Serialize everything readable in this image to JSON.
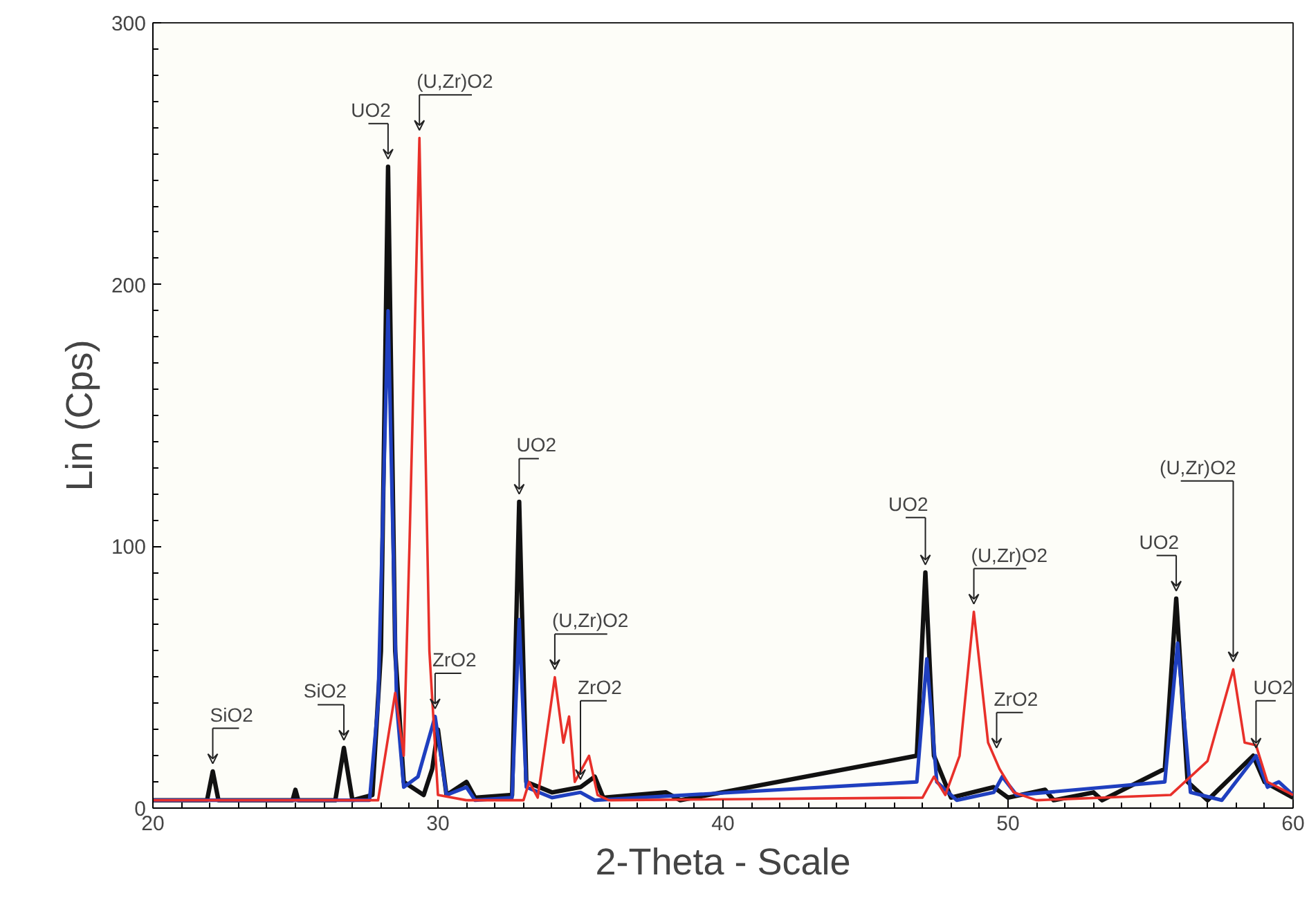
{
  "chart_data": {
    "type": "line",
    "xlabel": "2-Theta - Scale",
    "ylabel": "Lin (Cps)",
    "xlim": [
      20,
      60
    ],
    "ylim": [
      0,
      300
    ],
    "xticks": [
      20,
      30,
      40,
      50,
      60
    ],
    "yticks": [
      0,
      100,
      200,
      300
    ],
    "grid": false,
    "marker": "none",
    "line_style": "solid",
    "series": [
      {
        "color": "#111111",
        "x": [
          20,
          21.9,
          22.1,
          22.3,
          24.9,
          25.0,
          25.1,
          26.4,
          26.7,
          27.0,
          27.7,
          28.0,
          28.25,
          28.5,
          28.8,
          29.5,
          29.8,
          30.0,
          30.3,
          31.0,
          31.3,
          32.6,
          32.85,
          33.1,
          34.0,
          35.0,
          35.5,
          35.8,
          38.0,
          38.5,
          46.8,
          47.1,
          47.4,
          48.0,
          49.5,
          50.0,
          51.3,
          51.6,
          53.0,
          53.3,
          55.5,
          55.9,
          56.3,
          57.0,
          58.6,
          59.0,
          60
        ],
        "values": [
          3,
          3,
          14,
          3,
          3,
          7,
          3,
          3,
          23,
          3,
          5,
          60,
          245,
          60,
          10,
          5,
          15,
          30,
          5,
          10,
          4,
          5,
          117,
          10,
          6,
          8,
          12,
          4,
          6,
          3,
          20,
          90,
          20,
          4,
          8,
          4,
          7,
          3,
          6,
          3,
          15,
          80,
          10,
          3,
          20,
          10,
          4
        ]
      },
      {
        "color": "#1f3fbf",
        "x": [
          20,
          27.6,
          27.9,
          28.25,
          28.55,
          28.8,
          29.3,
          29.9,
          30.3,
          31.0,
          31.3,
          32.6,
          32.85,
          33.1,
          34.0,
          35.0,
          35.5,
          46.8,
          47.15,
          47.5,
          48.2,
          49.5,
          49.8,
          50.3,
          55.5,
          55.95,
          56.4,
          57.5,
          58.7,
          59.1,
          59.5,
          60
        ],
        "values": [
          3,
          3,
          40,
          190,
          40,
          8,
          12,
          35,
          5,
          8,
          3,
          4,
          72,
          8,
          4,
          6,
          3,
          10,
          57,
          10,
          3,
          6,
          12,
          5,
          10,
          63,
          6,
          3,
          20,
          8,
          10,
          5
        ]
      },
      {
        "color": "#e8302a",
        "x": [
          20,
          27.9,
          28.5,
          28.8,
          29.0,
          29.35,
          29.7,
          30.0,
          31.0,
          33.0,
          33.2,
          33.5,
          34.1,
          34.4,
          34.6,
          34.8,
          35.3,
          35.6,
          36.0,
          47.0,
          47.4,
          47.8,
          48.3,
          48.8,
          49.3,
          49.7,
          50.2,
          51.0,
          55.7,
          56.4,
          57.0,
          57.9,
          58.3,
          58.7,
          59.1,
          60
        ],
        "values": [
          3,
          3,
          44,
          20,
          100,
          256,
          60,
          5,
          3,
          3,
          10,
          4,
          50,
          25,
          35,
          10,
          20,
          5,
          3,
          4,
          12,
          5,
          20,
          75,
          25,
          15,
          6,
          3,
          5,
          12,
          18,
          53,
          25,
          24,
          10,
          5
        ]
      }
    ],
    "annotations": [
      {
        "text": "SiO2",
        "x": 22.1,
        "y": 14
      },
      {
        "text": "SiO2",
        "x": 26.7,
        "y": 23
      },
      {
        "text": "UO2",
        "x": 28.25,
        "y": 245
      },
      {
        "text": "(U,Zr)O2",
        "x": 29.35,
        "y": 256
      },
      {
        "text": "ZrO2",
        "x": 29.9,
        "y": 35
      },
      {
        "text": "UO2",
        "x": 32.85,
        "y": 117
      },
      {
        "text": "(U,Zr)O2",
        "x": 34.1,
        "y": 50
      },
      {
        "text": "ZrO2",
        "x": 35.0,
        "y": 8
      },
      {
        "text": "UO2",
        "x": 47.1,
        "y": 90
      },
      {
        "text": "(U,Zr)O2",
        "x": 48.8,
        "y": 75
      },
      {
        "text": "ZrO2",
        "x": 49.6,
        "y": 20
      },
      {
        "text": "UO2",
        "x": 55.9,
        "y": 80
      },
      {
        "text": "(U,Zr)O2",
        "x": 57.9,
        "y": 53
      },
      {
        "text": "UO2",
        "x": 58.7,
        "y": 20
      }
    ]
  }
}
